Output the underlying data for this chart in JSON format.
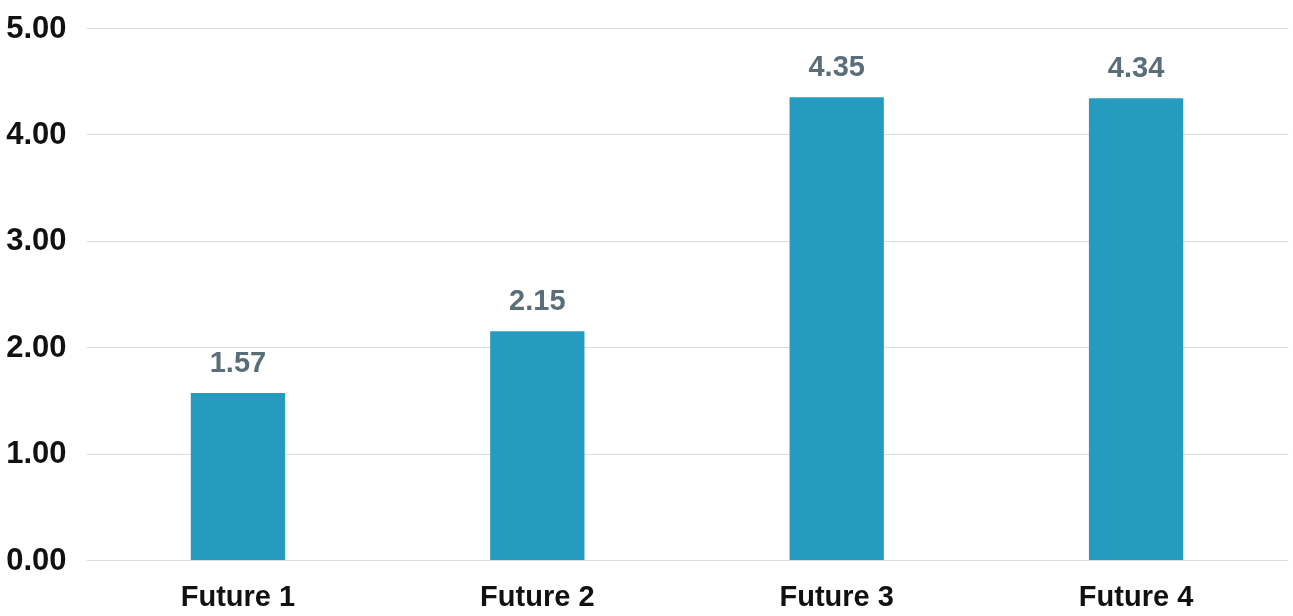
{
  "chart_data": {
    "type": "bar",
    "categories": [
      "Future 1",
      "Future 2",
      "Future 3",
      "Future 4"
    ],
    "values": [
      1.57,
      2.15,
      4.35,
      4.34
    ],
    "color": "#259cbf",
    "ylim": [
      0,
      5
    ],
    "yticks": [
      {
        "value": 0,
        "label": "0.00"
      },
      {
        "value": 1,
        "label": "1.00"
      },
      {
        "value": 2,
        "label": "2.00"
      },
      {
        "value": 3,
        "label": "3.00"
      },
      {
        "value": 4,
        "label": "4.00"
      },
      {
        "value": 5,
        "label": "5.00"
      }
    ],
    "grid": "y",
    "data_labels": true
  }
}
